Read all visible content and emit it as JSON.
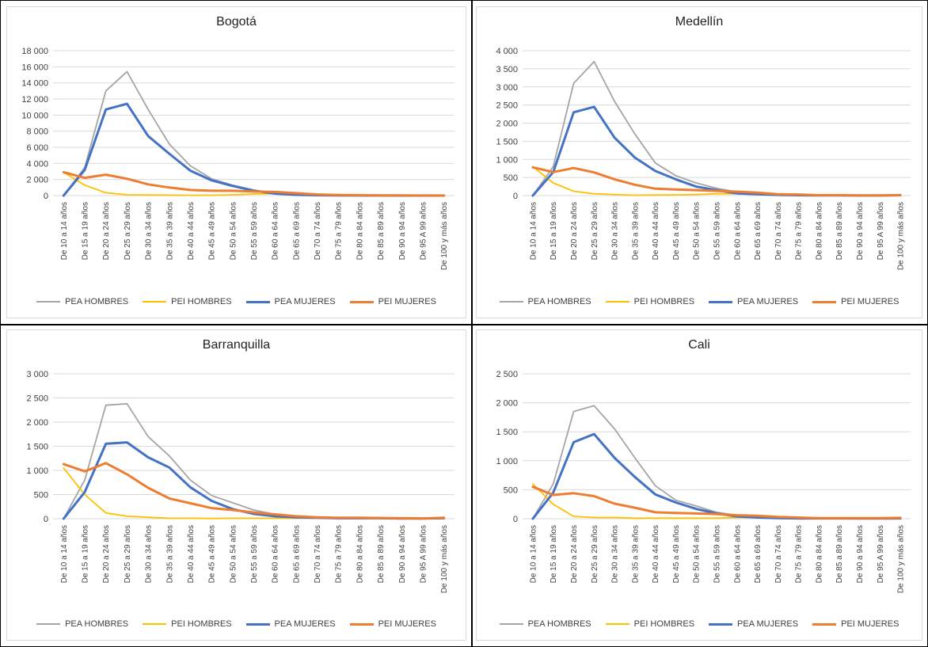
{
  "colors": {
    "pea_hombres": "#A5A5A5",
    "pei_hombres": "#FFC000",
    "pea_mujeres": "#4472C4",
    "pei_mujeres": "#ED7D31",
    "grid": "#d9d9d9"
  },
  "legend": [
    "PEA HOMBRES",
    "PEI HOMBRES",
    "PEA MUJERES",
    "PEI MUJERES"
  ],
  "chart_data": [
    {
      "type": "line",
      "title": "Bogotá",
      "categories": [
        "De 10 a 14 años",
        "De 15 a 19 años",
        "De 20 a 24 años",
        "De 25 a 29 años",
        "De 30 a 34 años",
        "De 35 a 39 años",
        "De 40 a 44 años",
        "De 45 a 49 años",
        "De 50 a 54 años",
        "De 55 a 59 años",
        "De 60 a 64 años",
        "De 65 a 69 años",
        "De 70 a 74 años",
        "De 75 a 79 años",
        "De 80 a 84 años",
        "De 85 a 89 años",
        "De 90 a 94 años",
        "De 95 A 99 años",
        "De 100 y más años"
      ],
      "ylim": [
        0,
        18000
      ],
      "yticks": [
        "0",
        "2 000",
        "4 000",
        "6 000",
        "8 000",
        "10 000",
        "12 000",
        "14 000",
        "16 000",
        "18 000"
      ],
      "series": [
        {
          "name": "PEA HOMBRES",
          "values": [
            0,
            3500,
            13000,
            15400,
            10700,
            6400,
            3700,
            2100,
            1300,
            700,
            300,
            150,
            70,
            30,
            15,
            10,
            5,
            3,
            2
          ]
        },
        {
          "name": "PEI HOMBRES",
          "values": [
            2900,
            1300,
            350,
            100,
            80,
            60,
            50,
            50,
            100,
            200,
            250,
            150,
            80,
            40,
            20,
            10,
            5,
            3,
            2
          ]
        },
        {
          "name": "PEA MUJERES",
          "values": [
            0,
            3200,
            10700,
            11400,
            7400,
            5200,
            3100,
            1900,
            1200,
            600,
            250,
            100,
            50,
            20,
            10,
            5,
            3,
            2,
            1
          ]
        },
        {
          "name": "PEI MUJERES",
          "values": [
            2900,
            2200,
            2600,
            2100,
            1400,
            1000,
            700,
            600,
            600,
            500,
            450,
            300,
            150,
            80,
            50,
            30,
            15,
            10,
            5
          ]
        }
      ]
    },
    {
      "type": "line",
      "title": "Medellín",
      "categories": [
        "De 10 a 14 años",
        "De 15 a 19 años",
        "De 20 a 24 años",
        "De 25 a 29 años",
        "De 30 a 34 años",
        "De 35 a 39 años",
        "De 40 a 44 años",
        "De 45 a 49 años",
        "De 50 a 54 años",
        "De 55 a 59 años",
        "De 60 a 64 años",
        "De 65 a 69 años",
        "De 70 a 74 años",
        "De 75 a 79 años",
        "De 80 a 84 años",
        "De 85 a 89 años",
        "De 90 a 94 años",
        "De 95 A 99 años",
        "De 100 y más años"
      ],
      "ylim": [
        0,
        4000
      ],
      "yticks": [
        "0",
        "500",
        "1 000",
        "1 500",
        "2 000",
        "2 500",
        "3 000",
        "3 500",
        "4 000"
      ],
      "series": [
        {
          "name": "PEA HOMBRES",
          "values": [
            0,
            800,
            3100,
            3700,
            2600,
            1700,
            900,
            550,
            350,
            200,
            100,
            60,
            30,
            20,
            10,
            20,
            5,
            5,
            30
          ]
        },
        {
          "name": "PEI HOMBRES",
          "values": [
            800,
            350,
            120,
            50,
            30,
            10,
            20,
            20,
            30,
            50,
            50,
            40,
            20,
            20,
            10,
            10,
            5,
            5,
            10
          ]
        },
        {
          "name": "PEA MUJERES",
          "values": [
            0,
            650,
            2300,
            2450,
            1600,
            1050,
            680,
            450,
            250,
            150,
            60,
            40,
            20,
            10,
            5,
            5,
            3,
            2,
            10
          ]
        },
        {
          "name": "PEI MUJERES",
          "values": [
            780,
            650,
            760,
            640,
            450,
            300,
            190,
            170,
            150,
            130,
            110,
            80,
            40,
            30,
            10,
            10,
            5,
            5,
            10
          ]
        }
      ]
    },
    {
      "type": "line",
      "title": "Barranquilla",
      "categories": [
        "De 10 a 14 años",
        "De 15 a 19 años",
        "De 20 a 24 años",
        "De 25 a 29 años",
        "De 30 a 34 años",
        "De 35 a 39 años",
        "De 40 a 44 años",
        "De 45 a 49 años",
        "De 50 a 54 años",
        "De 55 a 59 años",
        "De 60 a 64 años",
        "De 65 a 69 años",
        "De 70 a 74 años",
        "De 75 a 79 años",
        "De 80 a 84 años",
        "De 85 a 89 años",
        "De 90 a 94 años",
        "De 95 A 99 años",
        "De 100 y más años"
      ],
      "ylim": [
        0,
        3000
      ],
      "yticks": [
        "0",
        "500",
        "1 000",
        "1 500",
        "2 000",
        "2 500",
        "3 000"
      ],
      "series": [
        {
          "name": "PEA HOMBRES",
          "values": [
            0,
            800,
            2350,
            2380,
            1700,
            1300,
            800,
            480,
            330,
            180,
            90,
            50,
            30,
            20,
            20,
            20,
            10,
            5,
            20
          ]
        },
        {
          "name": "PEI HOMBRES",
          "values": [
            1050,
            500,
            120,
            50,
            30,
            10,
            10,
            5,
            10,
            10,
            10,
            10,
            10,
            10,
            10,
            10,
            5,
            5,
            10
          ]
        },
        {
          "name": "PEA MUJERES",
          "values": [
            0,
            550,
            1550,
            1580,
            1270,
            1060,
            650,
            370,
            200,
            100,
            50,
            30,
            20,
            10,
            10,
            10,
            5,
            5,
            10
          ]
        },
        {
          "name": "PEI MUJERES",
          "values": [
            1130,
            980,
            1150,
            920,
            640,
            420,
            320,
            220,
            180,
            130,
            90,
            50,
            30,
            20,
            20,
            15,
            10,
            5,
            20
          ]
        }
      ]
    },
    {
      "type": "line",
      "title": "Cali",
      "categories": [
        "De 10 a 14 años",
        "De 15 a 19 años",
        "De 20 a 24 años",
        "De 25 a 29 años",
        "De 30 a 34 años",
        "De 35 a 39 años",
        "De 40 a 44 años",
        "De 45 a 49 años",
        "De 50 a 54 años",
        "De 55 a 59 años",
        "De 60 a 64 años",
        "De 65 a 69 años",
        "De 70 a 74 años",
        "De 75 a 79 años",
        "De 80 a 84 años",
        "De 85 a 89 años",
        "De 90 a 94 años",
        "De 95 A 99 años",
        "De 100 y más años"
      ],
      "ylim": [
        0,
        2500
      ],
      "yticks": [
        "0",
        "500",
        "1 000",
        "1 500",
        "2 000",
        "2 500"
      ],
      "series": [
        {
          "name": "PEA HOMBRES",
          "values": [
            0,
            600,
            1850,
            1950,
            1550,
            1050,
            570,
            320,
            220,
            110,
            60,
            40,
            20,
            10,
            10,
            10,
            5,
            5,
            10
          ]
        },
        {
          "name": "PEI HOMBRES",
          "values": [
            600,
            250,
            40,
            20,
            20,
            10,
            10,
            10,
            10,
            10,
            20,
            20,
            10,
            10,
            10,
            10,
            5,
            5,
            10
          ]
        },
        {
          "name": "PEA MUJERES",
          "values": [
            0,
            450,
            1320,
            1460,
            1050,
            720,
            420,
            280,
            170,
            90,
            40,
            20,
            10,
            5,
            5,
            5,
            3,
            3,
            5
          ]
        },
        {
          "name": "PEI MUJERES",
          "values": [
            550,
            410,
            440,
            390,
            260,
            190,
            110,
            100,
            90,
            80,
            60,
            50,
            30,
            20,
            10,
            10,
            10,
            10,
            15
          ]
        }
      ]
    }
  ]
}
